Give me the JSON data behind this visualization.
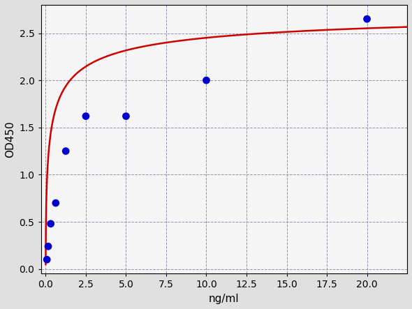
{
  "x_data": [
    0.078,
    0.156,
    0.313,
    0.625,
    1.25,
    2.5,
    5.0,
    10.0,
    20.0
  ],
  "y_data": [
    0.1,
    0.24,
    0.48,
    0.7,
    1.25,
    1.62,
    1.62,
    2.0,
    2.65
  ],
  "dot_color": "#0000cc",
  "curve_color": "#cc0000",
  "xlabel": "ng/ml",
  "ylabel": "OD450",
  "xlim": [
    -0.3,
    22.5
  ],
  "ylim": [
    -0.05,
    2.8
  ],
  "xticks": [
    0.0,
    2.5,
    5.0,
    7.5,
    10.0,
    12.5,
    15.0,
    17.5,
    20.0
  ],
  "yticks": [
    0.0,
    0.5,
    1.0,
    1.5,
    2.0,
    2.5
  ],
  "background_color": "#e0e0e0",
  "plot_bg_color": "#f5f5f5",
  "grid_color": "#9090b0",
  "dot_size": 60,
  "curve_linewidth": 1.8,
  "four_pl_params": [
    0.08,
    0.55,
    0.18,
    2.8
  ]
}
